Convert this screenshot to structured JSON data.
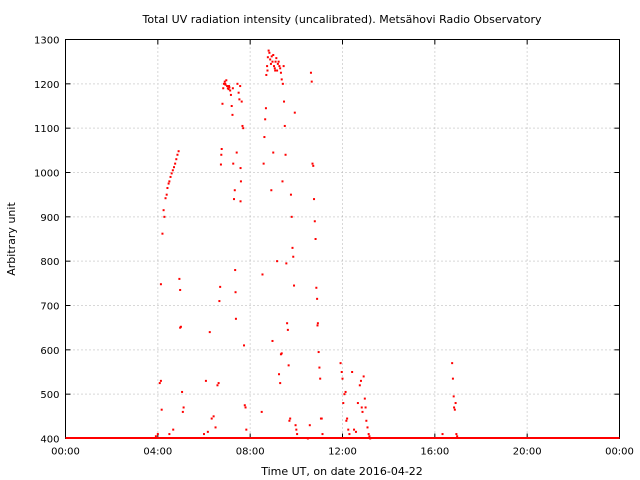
{
  "chart_data": {
    "type": "scatter",
    "title": "Total UV radiation intensity (uncalibrated). Metsähovi Radio Observatory",
    "xlabel": "Time UT, on date 2016-04-22",
    "ylabel": "Arbitrary unit",
    "xlim": [
      "00:00",
      "24:00"
    ],
    "ylim": [
      400,
      1300
    ],
    "x_tick_labels": [
      "00:00",
      "04:00",
      "08:00",
      "12:00",
      "16:00",
      "20:00",
      "00:00"
    ],
    "y_ticks": [
      400,
      500,
      600,
      700,
      800,
      900,
      1000,
      1100,
      1200,
      1300
    ],
    "grid": true,
    "legend": "none",
    "series_color": "#ff0000",
    "baseline": {
      "value": 400,
      "x_range": [
        "00:00",
        "24:00"
      ]
    },
    "points": [
      [
        "03:55",
        405
      ],
      [
        "04:00",
        410
      ],
      [
        "04:05",
        525
      ],
      [
        "04:08",
        530
      ],
      [
        "04:10",
        465
      ],
      [
        "04:08",
        748
      ],
      [
        "04:12",
        862
      ],
      [
        "04:15",
        915
      ],
      [
        "04:17",
        900
      ],
      [
        "04:20",
        942
      ],
      [
        "04:23",
        950
      ],
      [
        "04:25",
        965
      ],
      [
        "04:28",
        975
      ],
      [
        "04:30",
        980
      ],
      [
        "04:33",
        990
      ],
      [
        "04:36",
        998
      ],
      [
        "04:39",
        1005
      ],
      [
        "04:42",
        1012
      ],
      [
        "04:45",
        1020
      ],
      [
        "04:48",
        1030
      ],
      [
        "04:51",
        1040
      ],
      [
        "04:54",
        1048
      ],
      [
        "04:56",
        760
      ],
      [
        "04:58",
        735
      ],
      [
        "04:58",
        650
      ],
      [
        "05:00",
        652
      ],
      [
        "05:03",
        505
      ],
      [
        "05:05",
        460
      ],
      [
        "05:07",
        470
      ],
      [
        "04:40",
        420
      ],
      [
        "04:30",
        410
      ],
      [
        "06:00",
        410
      ],
      [
        "06:05",
        530
      ],
      [
        "06:10",
        415
      ],
      [
        "06:15",
        640
      ],
      [
        "06:20",
        445
      ],
      [
        "06:25",
        450
      ],
      [
        "06:30",
        425
      ],
      [
        "06:35",
        520
      ],
      [
        "06:38",
        525
      ],
      [
        "06:40",
        710
      ],
      [
        "06:42",
        742
      ],
      [
        "06:44",
        1018
      ],
      [
        "06:45",
        1040
      ],
      [
        "06:46",
        1053
      ],
      [
        "06:48",
        1155
      ],
      [
        "06:50",
        1190
      ],
      [
        "06:52",
        1200
      ],
      [
        "06:54",
        1205
      ],
      [
        "06:56",
        1198
      ],
      [
        "06:58",
        1208
      ],
      [
        "07:00",
        1195
      ],
      [
        "07:02",
        1190
      ],
      [
        "07:04",
        1188
      ],
      [
        "07:06",
        1192
      ],
      [
        "07:08",
        1185
      ],
      [
        "07:10",
        1175
      ],
      [
        "07:12",
        1150
      ],
      [
        "07:14",
        1130
      ],
      [
        "07:15",
        1190
      ],
      [
        "07:16",
        1020
      ],
      [
        "07:18",
        940
      ],
      [
        "07:20",
        960
      ],
      [
        "07:21",
        780
      ],
      [
        "07:22",
        730
      ],
      [
        "07:23",
        670
      ],
      [
        "07:25",
        1045
      ],
      [
        "07:27",
        1200
      ],
      [
        "07:30",
        1180
      ],
      [
        "07:32",
        1165
      ],
      [
        "07:34",
        1195
      ],
      [
        "07:35",
        1010
      ],
      [
        "07:36",
        980
      ],
      [
        "07:38",
        1160
      ],
      [
        "07:40",
        1105
      ],
      [
        "07:42",
        1100
      ],
      [
        "07:44",
        610
      ],
      [
        "07:46",
        475
      ],
      [
        "07:48",
        470
      ],
      [
        "07:50",
        420
      ],
      [
        "07:35",
        935
      ],
      [
        "08:30",
        460
      ],
      [
        "08:32",
        770
      ],
      [
        "08:35",
        1020
      ],
      [
        "08:37",
        1080
      ],
      [
        "08:39",
        1120
      ],
      [
        "08:41",
        1145
      ],
      [
        "08:42",
        1220
      ],
      [
        "08:44",
        1240
      ],
      [
        "08:46",
        1260
      ],
      [
        "08:48",
        1275
      ],
      [
        "08:50",
        1270
      ],
      [
        "08:52",
        1255
      ],
      [
        "08:54",
        1245
      ],
      [
        "08:56",
        1262
      ],
      [
        "08:58",
        1250
      ],
      [
        "09:00",
        1265
      ],
      [
        "09:02",
        1240
      ],
      [
        "09:04",
        1235
      ],
      [
        "09:06",
        1250
      ],
      [
        "09:08",
        1258
      ],
      [
        "09:10",
        1230
      ],
      [
        "09:12",
        1245
      ],
      [
        "09:14",
        1250
      ],
      [
        "09:16",
        1240
      ],
      [
        "09:18",
        1235
      ],
      [
        "09:20",
        1225
      ],
      [
        "09:22",
        1210
      ],
      [
        "08:55",
        960
      ],
      [
        "09:00",
        1045
      ],
      [
        "08:58",
        620
      ],
      [
        "09:10",
        800
      ],
      [
        "09:15",
        545
      ],
      [
        "09:18",
        525
      ],
      [
        "09:20",
        590
      ],
      [
        "09:22",
        592
      ],
      [
        "09:24",
        980
      ],
      [
        "09:25",
        1200
      ],
      [
        "09:27",
        1240
      ],
      [
        "09:28",
        1160
      ],
      [
        "09:30",
        1105
      ],
      [
        "09:32",
        1040
      ],
      [
        "09:34",
        795
      ],
      [
        "09:36",
        660
      ],
      [
        "09:38",
        645
      ],
      [
        "09:40",
        565
      ],
      [
        "09:42",
        440
      ],
      [
        "09:44",
        445
      ],
      [
        "09:46",
        950
      ],
      [
        "09:48",
        900
      ],
      [
        "09:50",
        830
      ],
      [
        "09:52",
        810
      ],
      [
        "09:54",
        745
      ],
      [
        "09:56",
        1135
      ],
      [
        "09:58",
        430
      ],
      [
        "10:00",
        420
      ],
      [
        "10:02",
        410
      ],
      [
        "10:30",
        400
      ],
      [
        "10:35",
        430
      ],
      [
        "10:38",
        1225
      ],
      [
        "10:40",
        1205
      ],
      [
        "10:42",
        1020
      ],
      [
        "10:44",
        1015
      ],
      [
        "10:46",
        940
      ],
      [
        "10:48",
        890
      ],
      [
        "10:50",
        850
      ],
      [
        "10:52",
        740
      ],
      [
        "10:54",
        715
      ],
      [
        "10:55",
        655
      ],
      [
        "10:56",
        660
      ],
      [
        "10:58",
        595
      ],
      [
        "11:00",
        560
      ],
      [
        "11:02",
        535
      ],
      [
        "11:04",
        445
      ],
      [
        "11:06",
        445
      ],
      [
        "11:08",
        410
      ],
      [
        "11:55",
        570
      ],
      [
        "11:58",
        550
      ],
      [
        "12:00",
        535
      ],
      [
        "12:02",
        480
      ],
      [
        "12:05",
        500
      ],
      [
        "12:08",
        505
      ],
      [
        "12:10",
        440
      ],
      [
        "12:12",
        445
      ],
      [
        "12:15",
        420
      ],
      [
        "12:18",
        410
      ],
      [
        "12:25",
        550
      ],
      [
        "12:30",
        420
      ],
      [
        "12:35",
        415
      ],
      [
        "12:40",
        480
      ],
      [
        "12:45",
        520
      ],
      [
        "12:48",
        530
      ],
      [
        "12:50",
        470
      ],
      [
        "12:52",
        460
      ],
      [
        "12:55",
        540
      ],
      [
        "12:58",
        490
      ],
      [
        "13:00",
        470
      ],
      [
        "13:02",
        440
      ],
      [
        "13:05",
        425
      ],
      [
        "13:08",
        410
      ],
      [
        "13:10",
        405
      ],
      [
        "13:12",
        400
      ],
      [
        "16:45",
        570
      ],
      [
        "16:47",
        535
      ],
      [
        "16:49",
        495
      ],
      [
        "16:50",
        470
      ],
      [
        "16:52",
        465
      ],
      [
        "16:54",
        480
      ],
      [
        "16:56",
        410
      ],
      [
        "16:58",
        405
      ],
      [
        "16:20",
        410
      ],
      [
        "06:55",
        1200
      ],
      [
        "07:05",
        1195
      ],
      [
        "08:45",
        1230
      ],
      [
        "09:05",
        1230
      ]
    ]
  }
}
